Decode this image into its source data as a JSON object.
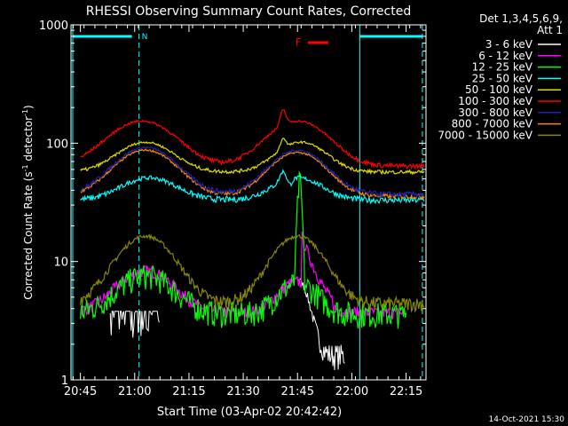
{
  "chart_data": {
    "type": "line",
    "title": "RHESSI Observing Summary Count Rates, Corrected",
    "xlabel": "Start Time (03-Apr-02 20:42:42)",
    "ylabel_main": "Corrected Count Rate (s",
    "ylabel_sup1": "-1",
    "ylabel_mid": " detector",
    "ylabel_sup2": "-1",
    "ylabel_end": ")",
    "y_scale": "log",
    "ylim": [
      1,
      1000
    ],
    "xlim_minutes": [
      20.7,
      22.33
    ],
    "x_ticks": [
      {
        "label": "20:45",
        "m": 0
      },
      {
        "label": "21:00",
        "m": 15
      },
      {
        "label": "21:15",
        "m": 30
      },
      {
        "label": "21:30",
        "m": 45
      },
      {
        "label": "21:45",
        "m": 60
      },
      {
        "label": "22:00",
        "m": 75
      },
      {
        "label": "22:15",
        "m": 90
      }
    ],
    "y_ticks": [
      {
        "label": "1",
        "v": 1
      },
      {
        "label": "10",
        "v": 10
      },
      {
        "label": "100",
        "v": 100
      },
      {
        "label": "1000",
        "v": 1000
      }
    ],
    "legend_header": [
      "Det 1,3,4,5,6,9,",
      "Att 1"
    ],
    "series": [
      {
        "name": "3 - 6 keV",
        "color": "#ffffff"
      },
      {
        "name": "6 - 12 keV",
        "color": "#ff00ff"
      },
      {
        "name": "12 - 25 keV",
        "color": "#00ff00"
      },
      {
        "name": "25 - 50 keV",
        "color": "#00ffff"
      },
      {
        "name": "50 - 100 keV",
        "color": "#dddd00"
      },
      {
        "name": "100 - 300 keV",
        "color": "#ff0000"
      },
      {
        "name": "300 - 800 keV",
        "color": "#2222aa"
      },
      {
        "name": "800 - 7000 keV",
        "color": "#ff8800"
      },
      {
        "name": "7000 - 15000 keV",
        "color": "#888800"
      }
    ],
    "annotations": {
      "night_label": "N",
      "flare_label": "F",
      "timestamp": "14-Oct-2021 15:30"
    }
  }
}
